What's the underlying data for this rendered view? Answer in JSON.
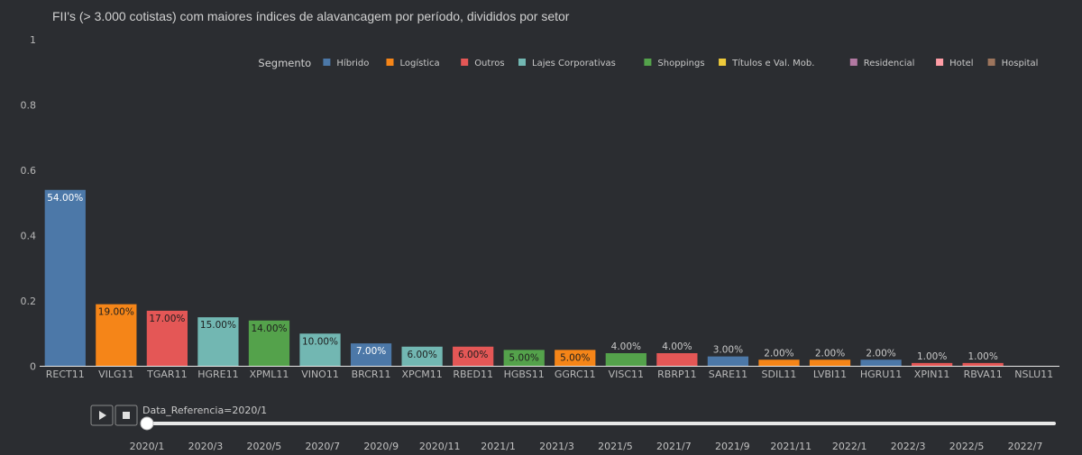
{
  "chart_data": {
    "type": "bar",
    "title": "FII's (> 3.000 cotistas) com maiores índices de alavancagem por período, divididos por setor",
    "ylim": [
      0,
      1
    ],
    "yticks": [
      0,
      0.2,
      0.4,
      0.6,
      0.8,
      1
    ],
    "ytick_labels": [
      "0",
      "0.2",
      "0.4",
      "0.6",
      "0.8",
      "1"
    ],
    "categories": [
      "RECT11",
      "VILG11",
      "TGAR11",
      "HGRE11",
      "XPML11",
      "VINO11",
      "BRCR11",
      "XPCM11",
      "RBED11",
      "HGBS11",
      "GGRC11",
      "VISC11",
      "RBRP11",
      "SARE11",
      "SDIL11",
      "LVBI11",
      "HGRU11",
      "XPIN11",
      "RBVA11",
      "NSLU11"
    ],
    "values": [
      0.54,
      0.19,
      0.17,
      0.15,
      0.14,
      0.1,
      0.07,
      0.06,
      0.06,
      0.05,
      0.05,
      0.04,
      0.04,
      0.03,
      0.02,
      0.02,
      0.02,
      0.01,
      0.01,
      0.0
    ],
    "data_labels": [
      "54.00%",
      "19.00%",
      "17.00%",
      "15.00%",
      "14.00%",
      "10.00%",
      "7.00%",
      "6.00%",
      "6.00%",
      "5.00%",
      "5.00%",
      "4.00%",
      "4.00%",
      "3.00%",
      "2.00%",
      "2.00%",
      "2.00%",
      "1.00%",
      "1.00%",
      ""
    ],
    "segments": [
      "Híbrido",
      "Logística",
      "Outros",
      "Lajes Corporativas",
      "Shoppings",
      "Lajes Corporativas",
      "Híbrido",
      "Lajes Corporativas",
      "Outros",
      "Shoppings",
      "Logística",
      "Shoppings",
      "Outros",
      "Híbrido",
      "Logística",
      "Logística",
      "Híbrido",
      "Outros",
      "Outros",
      "Hospital"
    ],
    "legend": {
      "title": "Segmento",
      "placement": "top-right",
      "entries": [
        {
          "name": "Híbrido",
          "color": "#4c78a8"
        },
        {
          "name": "Logística",
          "color": "#f58518"
        },
        {
          "name": "Outros",
          "color": "#e45756"
        },
        {
          "name": "Lajes Corporativas",
          "color": "#72b7b2"
        },
        {
          "name": "Shoppings",
          "color": "#54a24b"
        },
        {
          "name": "Títulos e Val. Mob.",
          "color": "#eeca3b"
        },
        {
          "name": "Residencial",
          "color": "#b279a2"
        },
        {
          "name": "Hotel",
          "color": "#ff9da6"
        },
        {
          "name": "Hospital",
          "color": "#9d755d"
        }
      ]
    },
    "grid": false
  },
  "slider": {
    "current_label": "Data_Referencia=2020/1",
    "current_index": 0,
    "steps": [
      "2020/1",
      "2020/3",
      "2020/5",
      "2020/7",
      "2020/9",
      "2020/11",
      "2021/1",
      "2021/3",
      "2021/5",
      "2021/7",
      "2021/9",
      "2021/11",
      "2022/1",
      "2022/3",
      "2022/5",
      "2022/7"
    ]
  },
  "controls": {
    "play_icon": "play-icon",
    "stop_icon": "stop-icon"
  }
}
